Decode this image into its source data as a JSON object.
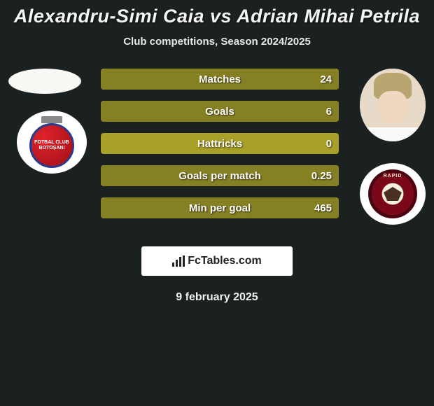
{
  "title": "Alexandru-Simi Caia vs Adrian Mihai Petrila",
  "subtitle": "Club competitions, Season 2024/2025",
  "comparison": {
    "track_color": "#a8a028",
    "fill_color": "#868024",
    "rows": [
      {
        "label": "Matches",
        "value": "24",
        "fill_pct": 1
      },
      {
        "label": "Goals",
        "value": "6",
        "fill_pct": 1
      },
      {
        "label": "Hattricks",
        "value": "0",
        "fill_pct": 0
      },
      {
        "label": "Goals per match",
        "value": "0.25",
        "fill_pct": 1
      },
      {
        "label": "Min per goal",
        "value": "465",
        "fill_pct": 1
      }
    ]
  },
  "left_club_text": "FOTBAL CLUB\\nBOTOȘANI",
  "right_club_text": "RAPID",
  "logo_text": "FcTables.com",
  "date": "9 february 2025"
}
